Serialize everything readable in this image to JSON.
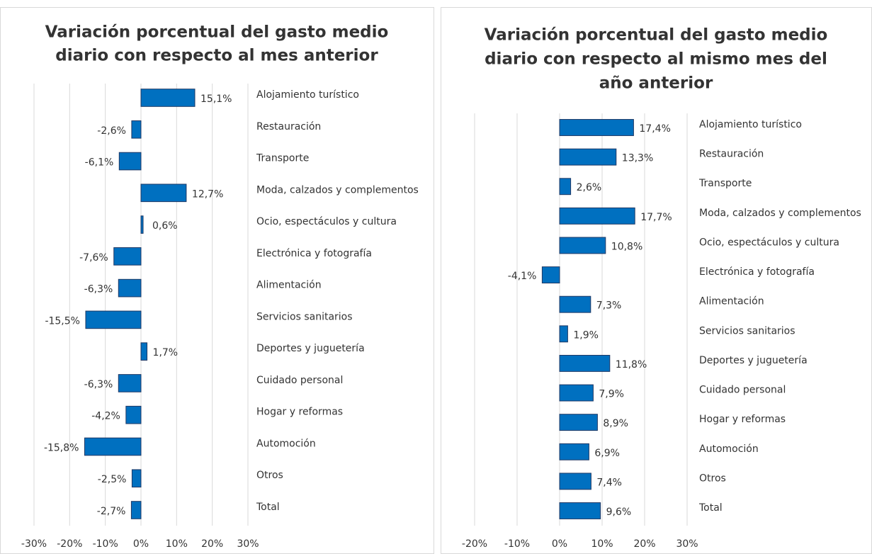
{
  "chart_data": [
    {
      "type": "bar",
      "orientation": "horizontal",
      "title": [
        "Variación porcentual del gasto medio",
        "diario con respecto al mes anterior"
      ],
      "categories": [
        "Alojamiento turístico",
        "Restauración",
        "Transporte",
        "Moda, calzados y complementos",
        "Ocio, espectáculos y cultura",
        "Electrónica y fotografía",
        "Alimentación",
        "Servicios sanitarios",
        "Deportes y juguetería",
        "Cuidado personal",
        "Hogar y reformas",
        "Automoción",
        "Otros",
        "Total"
      ],
      "values": [
        15.1,
        -2.6,
        -6.1,
        12.7,
        0.6,
        -7.6,
        -6.3,
        -15.5,
        1.7,
        -6.3,
        -4.2,
        -15.8,
        -2.5,
        -2.7
      ],
      "value_labels": [
        "15,1%",
        "-2,6%",
        "-6,1%",
        "12,7%",
        "0,6%",
        "-7,6%",
        "-6,3%",
        "-15,5%",
        "1,7%",
        "-6,3%",
        "-4,2%",
        "-15,8%",
        "-2,5%",
        "-2,7%"
      ],
      "color": "#0070c0",
      "xlim": [
        -30,
        30
      ],
      "xticks": [
        {
          "value": -30,
          "label": "-30%"
        },
        {
          "value": -20,
          "label": "-20%"
        },
        {
          "value": -10,
          "label": "-10%"
        },
        {
          "value": 0,
          "label": "0%"
        },
        {
          "value": 10,
          "label": "10%"
        },
        {
          "value": 20,
          "label": "20%"
        },
        {
          "value": 30,
          "label": "30%"
        }
      ],
      "grid": true
    },
    {
      "type": "bar",
      "orientation": "horizontal",
      "title": [
        "Variación porcentual del gasto medio",
        "diario con respecto al mismo mes del",
        "año anterior"
      ],
      "categories": [
        "Alojamiento turístico",
        "Restauración",
        "Transporte",
        "Moda, calzados y complementos",
        "Ocio, espectáculos y cultura",
        "Electrónica y fotografía",
        "Alimentación",
        "Servicios sanitarios",
        "Deportes y juguetería",
        "Cuidado personal",
        "Hogar y reformas",
        "Automoción",
        "Otros",
        "Total"
      ],
      "values": [
        17.4,
        13.3,
        2.6,
        17.7,
        10.8,
        -4.1,
        7.3,
        1.9,
        11.8,
        7.9,
        8.9,
        6.9,
        7.4,
        9.6
      ],
      "value_labels": [
        "17,4%",
        "13,3%",
        "2,6%",
        "17,7%",
        "10,8%",
        "-4,1%",
        "7,3%",
        "1,9%",
        "11,8%",
        "7,9%",
        "8,9%",
        "6,9%",
        "7,4%",
        "9,6%"
      ],
      "color": "#0070c0",
      "xlim": [
        -20,
        30
      ],
      "xticks": [
        {
          "value": -20,
          "label": "-20%"
        },
        {
          "value": -10,
          "label": "-10%"
        },
        {
          "value": 0,
          "label": "0%"
        },
        {
          "value": 10,
          "label": "10%"
        },
        {
          "value": 20,
          "label": "20%"
        },
        {
          "value": 30,
          "label": "30%"
        }
      ],
      "grid": true
    }
  ]
}
